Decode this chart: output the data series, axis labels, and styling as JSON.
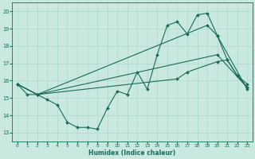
{
  "xlabel": "Humidex (Indice chaleur)",
  "xlim": [
    -0.5,
    23.5
  ],
  "ylim": [
    12.5,
    20.5
  ],
  "xticks": [
    0,
    1,
    2,
    3,
    4,
    5,
    6,
    7,
    8,
    9,
    10,
    11,
    12,
    13,
    14,
    15,
    16,
    17,
    18,
    19,
    20,
    21,
    22,
    23
  ],
  "yticks": [
    13,
    14,
    15,
    16,
    17,
    18,
    19,
    20
  ],
  "background_color": "#c8e8e0",
  "grid_color": "#b0d8d0",
  "line_color": "#1a6b5a",
  "line1_x": [
    0,
    1,
    2,
    3,
    4,
    5,
    6,
    7,
    8,
    9,
    10,
    11,
    12,
    13,
    14,
    15,
    16,
    17,
    18,
    19,
    20,
    21,
    22,
    23
  ],
  "line1_y": [
    15.8,
    15.2,
    15.2,
    14.9,
    14.6,
    13.6,
    13.3,
    13.3,
    13.2,
    14.4,
    15.4,
    15.2,
    16.5,
    15.5,
    17.5,
    19.2,
    19.4,
    18.7,
    19.8,
    19.9,
    18.6,
    17.2,
    16.3,
    15.8
  ],
  "line1_marker_x": [
    0,
    1,
    2,
    5,
    6,
    7,
    8,
    9,
    10,
    11,
    12,
    13,
    14,
    15,
    16,
    17,
    18,
    19,
    20,
    21,
    22,
    23
  ],
  "line2_x": [
    0,
    2,
    20,
    23
  ],
  "line2_y": [
    15.8,
    15.2,
    17.5,
    15.6
  ],
  "line3_x": [
    0,
    2,
    19,
    20,
    23
  ],
  "line3_y": [
    15.8,
    15.2,
    19.2,
    18.6,
    15.5
  ],
  "line4_x": [
    0,
    2,
    16,
    17,
    20,
    21,
    22,
    23
  ],
  "line4_y": [
    15.8,
    15.2,
    16.1,
    16.5,
    17.1,
    17.2,
    16.3,
    15.6
  ]
}
